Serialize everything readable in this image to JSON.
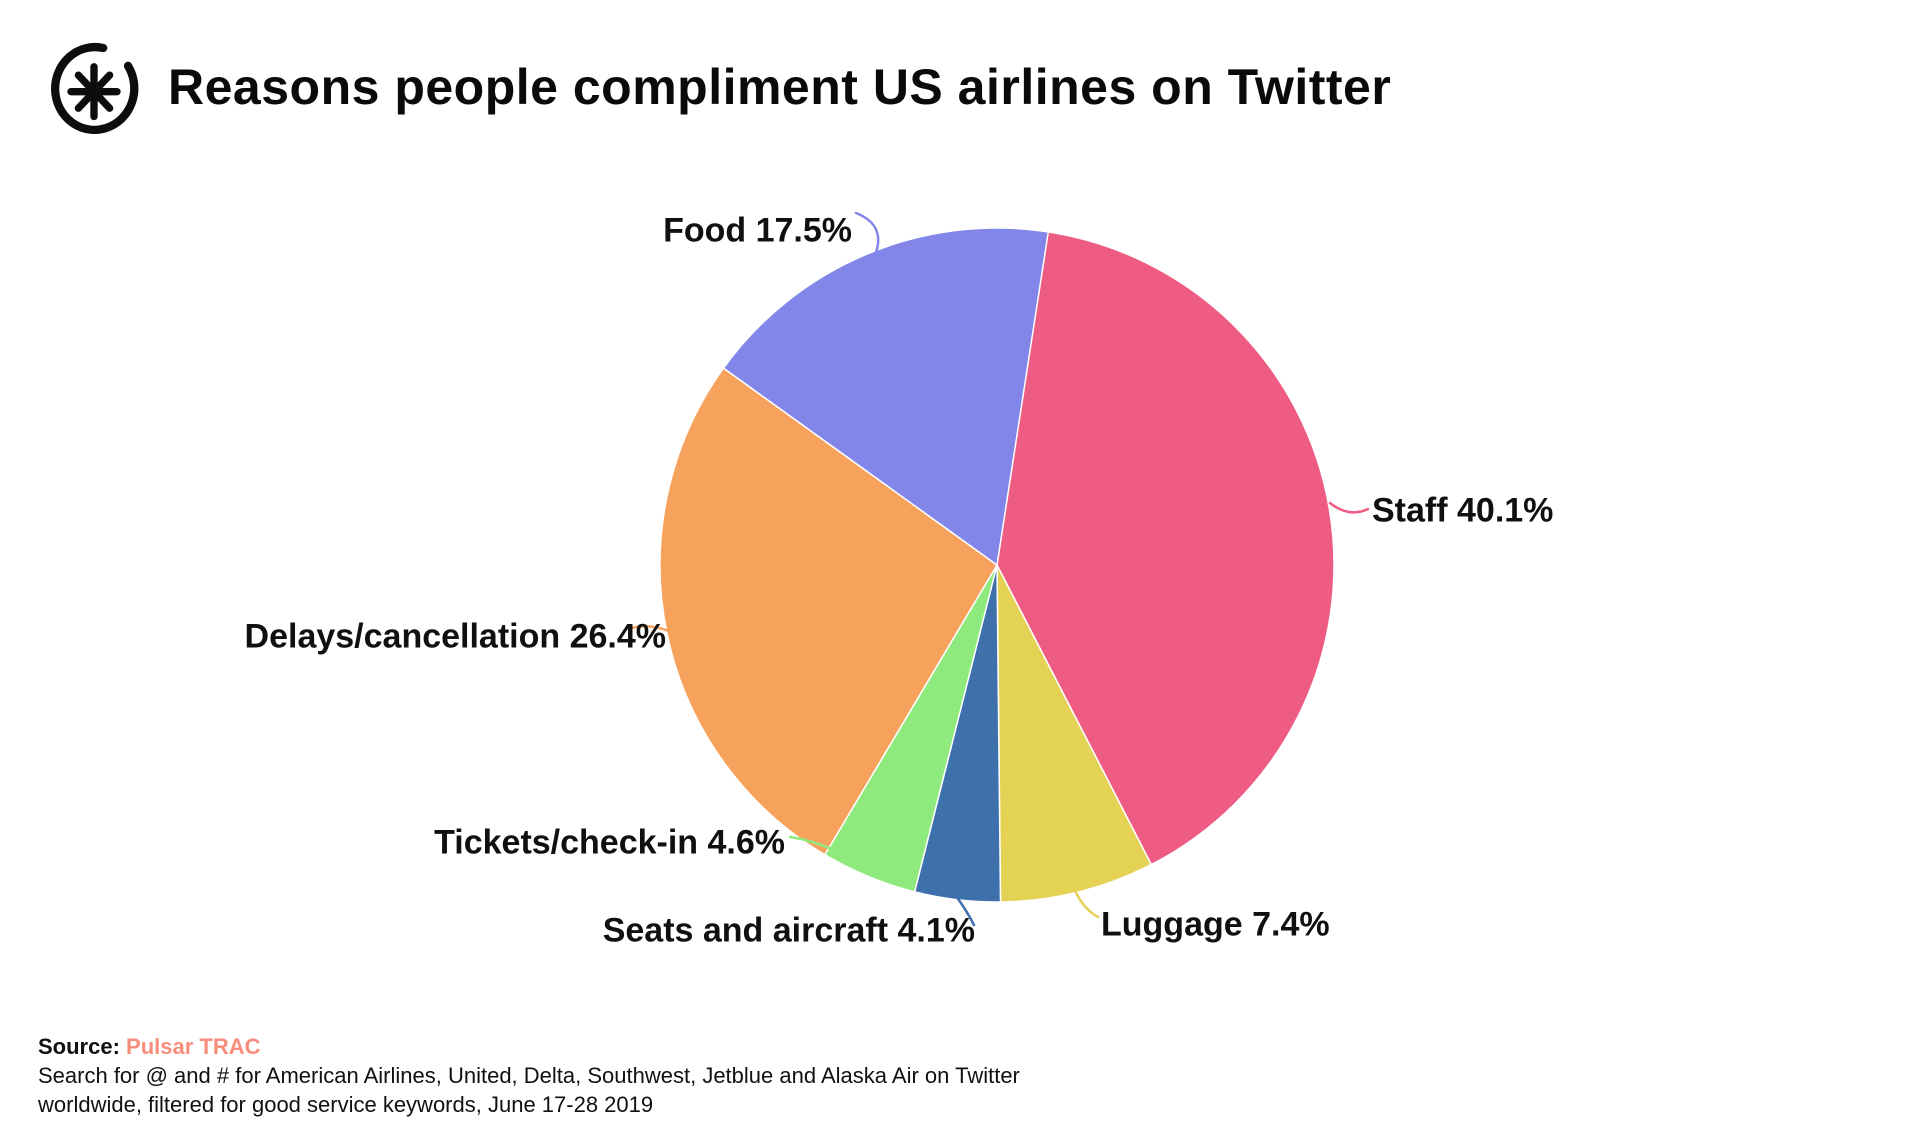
{
  "header": {
    "title": "Reasons people compliment US airlines on Twitter",
    "logo": "quartz-asterisk-logo"
  },
  "chart_data": {
    "type": "pie",
    "title": "Reasons people compliment US airlines on Twitter",
    "start_angle_deg": 8.4,
    "direction": "clockwise",
    "legend_position": "outside-labels-with-leader-lines",
    "slices": [
      {
        "label": "Staff",
        "value": 40.1,
        "display": "Staff 40.1%",
        "color": "#ee5c83"
      },
      {
        "label": "Luggage",
        "value": 7.4,
        "display": "Luggage 7.4%",
        "color": "#e4d254"
      },
      {
        "label": "Seats and aircraft",
        "value": 4.1,
        "display": "Seats and aircraft 4.1%",
        "color": "#3e70ac"
      },
      {
        "label": "Tickets/check-in",
        "value": 4.6,
        "display": "Tickets/check-in 4.6%",
        "color": "#8fea7d"
      },
      {
        "label": "Delays/cancellation",
        "value": 26.4,
        "display": "Delays/cancellation 26.4%",
        "color": "#f6a25c"
      },
      {
        "label": "Food",
        "value": 17.5,
        "display": "Food 17.5%",
        "color": "#8186e8"
      }
    ]
  },
  "source": {
    "label": "Source:",
    "link_text": "Pulsar TRAC",
    "link_color": "#f98d7c",
    "note_line1": "Search for @ and # for American Airlines, United, Delta, Southwest, Jetblue and Alaska Air on Twitter",
    "note_line2": "worldwide, filtered for good service keywords, June 17-28 2019"
  }
}
